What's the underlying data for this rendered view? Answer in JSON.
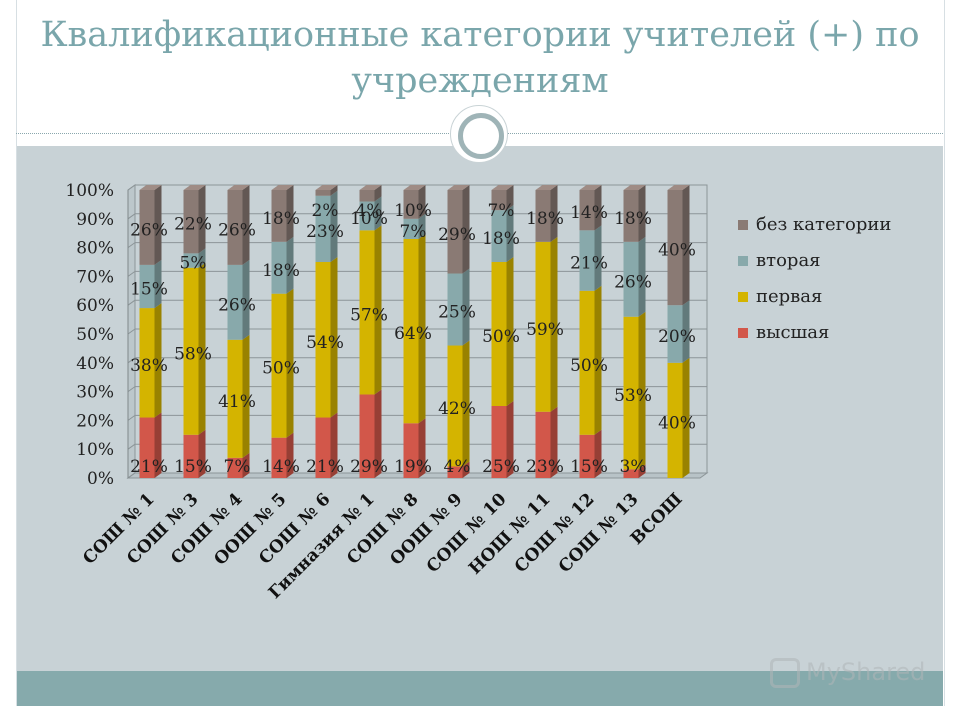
{
  "slide": {
    "title": "Квалификационные категории учителей (+) по учреждениям",
    "watermark": "MyShared"
  },
  "colors": {
    "series": [
      "#d2574a",
      "#d4b400",
      "#88a9ab",
      "#8a7a74"
    ]
  },
  "chart_data": {
    "type": "bar",
    "stacked": true,
    "percent_stacked": true,
    "title": "",
    "xlabel": "",
    "ylabel": "",
    "ylim": [
      0,
      100
    ],
    "yticks": [
      "0%",
      "10%",
      "20%",
      "30%",
      "40%",
      "50%",
      "60%",
      "70%",
      "80%",
      "90%",
      "100%"
    ],
    "grid": true,
    "legend_position": "right",
    "categories": [
      "СОШ № 1",
      "СОШ № 3",
      "СОШ № 4",
      "ООШ № 5",
      "СОШ № 6",
      "Гимназия № 1",
      "СОШ № 8",
      "ООШ № 9",
      "СОШ № 10",
      "НОШ № 11",
      "СОШ № 12",
      "СОШ № 13",
      "ВСОШ"
    ],
    "series": [
      {
        "name": "высшая",
        "values": [
          21,
          15,
          7,
          14,
          21,
          29,
          19,
          4,
          25,
          23,
          15,
          3,
          0
        ],
        "labels": [
          "21%",
          "15%",
          "7%",
          "14%",
          "21%",
          "29%",
          "19%",
          "4%",
          "25%",
          "23%",
          "15%",
          "3%",
          ""
        ]
      },
      {
        "name": "первая",
        "values": [
          38,
          58,
          41,
          50,
          54,
          57,
          64,
          42,
          50,
          59,
          50,
          53,
          40
        ],
        "labels": [
          "38%",
          "58%",
          "41%",
          "50%",
          "54%",
          "57%",
          "64%",
          "42%",
          "50%",
          "59%",
          "50%",
          "53%",
          "40%"
        ]
      },
      {
        "name": "вторая",
        "values": [
          15,
          5,
          26,
          18,
          23,
          10,
          7,
          25,
          18,
          0,
          21,
          26,
          20
        ],
        "labels": [
          "15%",
          "5%",
          "26%",
          "18%",
          "23%",
          "10%",
          "7%",
          "25%",
          "18%",
          "",
          "21%",
          "26%",
          "20%"
        ]
      },
      {
        "name": "без категории",
        "values": [
          26,
          22,
          26,
          18,
          2,
          4,
          10,
          29,
          7,
          18,
          14,
          18,
          40
        ],
        "labels": [
          "26%",
          "22%",
          "26%",
          "18%",
          "2%",
          "4%",
          "10%",
          "29%",
          "7%",
          "18%",
          "14%",
          "18%",
          "40%"
        ]
      }
    ]
  }
}
